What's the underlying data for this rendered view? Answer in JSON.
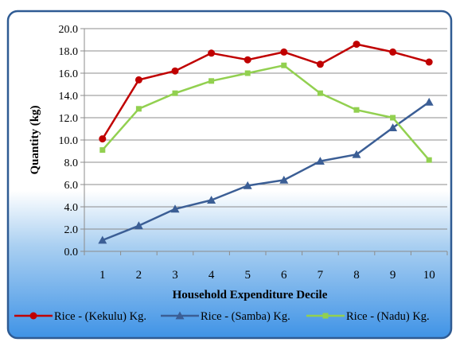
{
  "chart_data": {
    "type": "line",
    "xlabel": "Household Expenditure Decile",
    "ylabel": "Quantity (kg)",
    "categories": [
      "1",
      "2",
      "3",
      "4",
      "5",
      "6",
      "7",
      "8",
      "9",
      "10"
    ],
    "y_ticks": [
      "0.0",
      "2.0",
      "4.0",
      "6.0",
      "8.0",
      "10.0",
      "12.0",
      "14.0",
      "16.0",
      "18.0",
      "20.0"
    ],
    "ylim": [
      0,
      20
    ],
    "grid": "horizontal",
    "legend_position": "bottom",
    "series": [
      {
        "name": "Rice - (Kekulu) Kg.",
        "color": "#c00000",
        "marker": "circle",
        "values": [
          10.1,
          15.4,
          16.2,
          17.8,
          17.2,
          17.9,
          16.8,
          18.6,
          17.9,
          17.0
        ]
      },
      {
        "name": "Rice - (Samba) Kg.",
        "color": "#3b5e95",
        "marker": "triangle",
        "values": [
          1.0,
          2.3,
          3.8,
          4.6,
          5.9,
          6.4,
          8.1,
          8.7,
          11.1,
          13.4
        ]
      },
      {
        "name": "Rice - (Nadu) Kg.",
        "color": "#92d050",
        "marker": "square",
        "values": [
          9.1,
          12.8,
          14.2,
          15.3,
          16.0,
          16.7,
          14.2,
          12.7,
          12.0,
          8.2
        ]
      }
    ]
  }
}
